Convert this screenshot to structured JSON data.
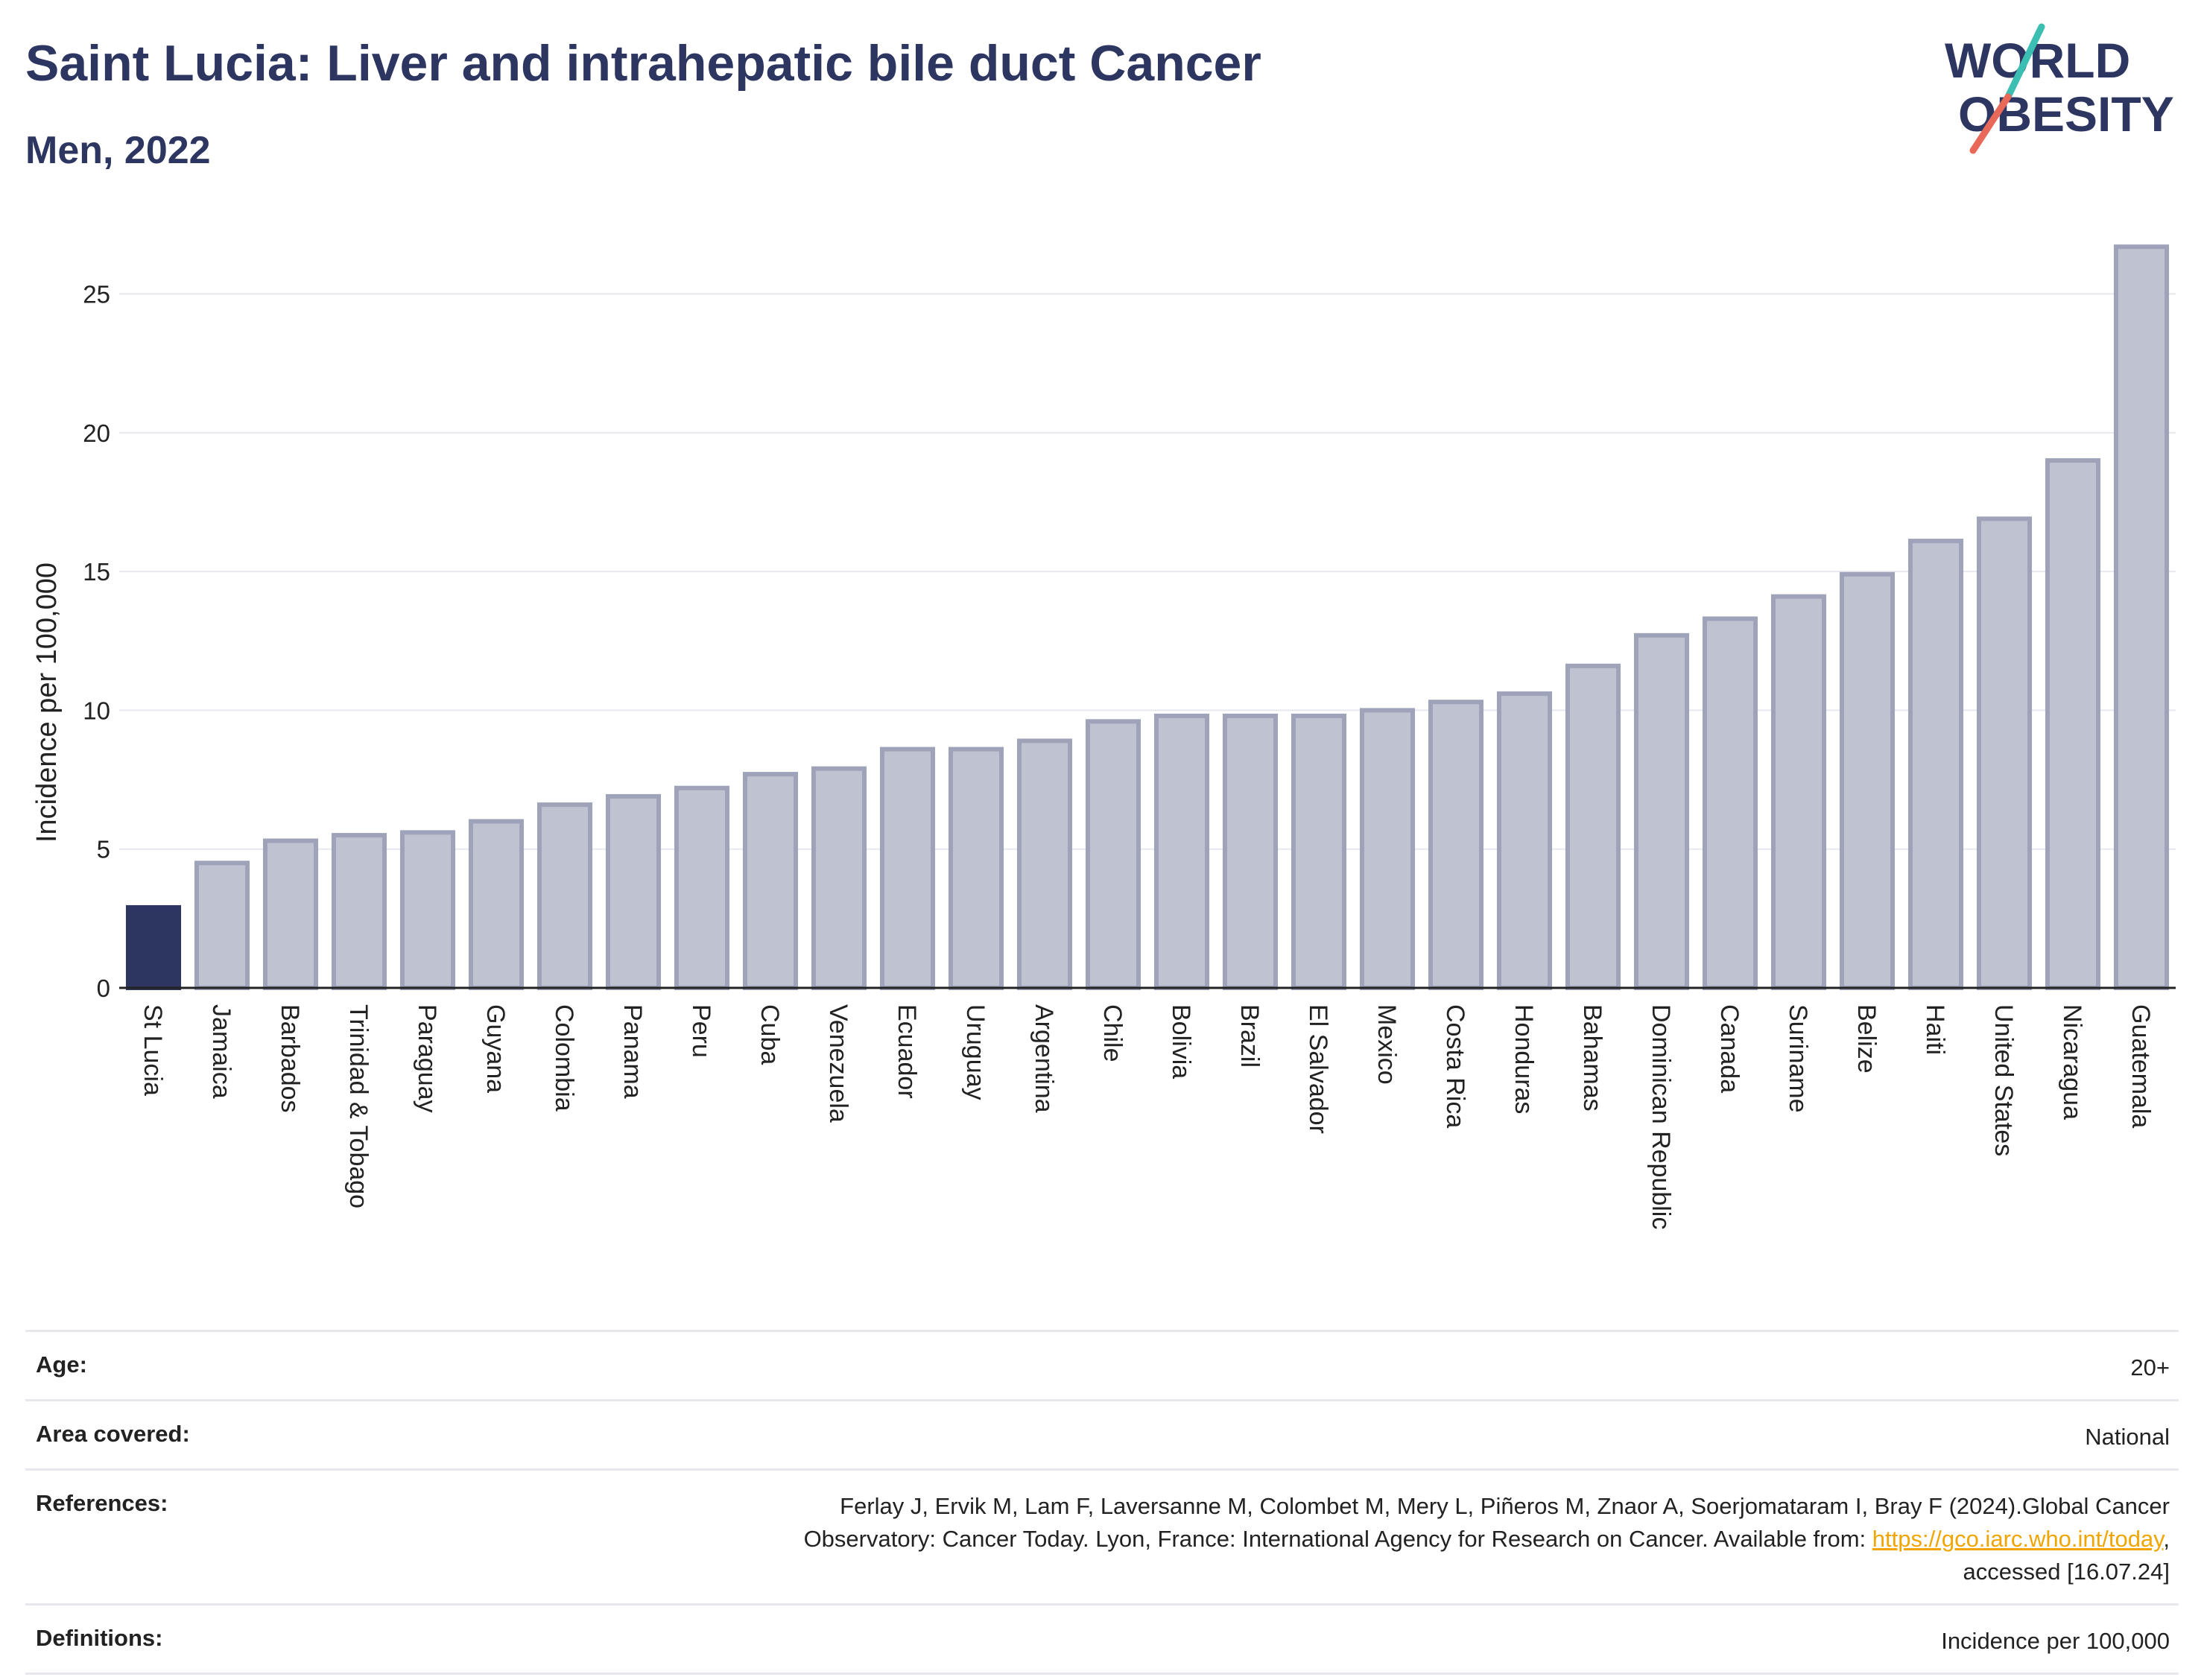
{
  "title": "Saint Lucia: Liver and intrahepatic bile duct Cancer",
  "subtitle": "Men, 2022",
  "logo": {
    "line1": "WORLD",
    "line2": "OBESITY",
    "colors": {
      "text": "#2d3561",
      "slash_teal": "#3bbfb2",
      "slash_coral": "#e8685a"
    }
  },
  "chart_data": {
    "type": "bar",
    "ylabel": "Incidence per 100,000",
    "xlabel": "",
    "ylim": [
      0,
      27
    ],
    "yticks": [
      0,
      5,
      10,
      15,
      20,
      25
    ],
    "grid": true,
    "highlight_category": "St Lucia",
    "colors": {
      "highlight": "#2d3561",
      "bar_fill": "#bfc2d0",
      "bar_stroke": "#9ea3ba"
    },
    "categories": [
      "St Lucia",
      "Jamaica",
      "Barbados",
      "Trinidad & Tobago",
      "Paraguay",
      "Guyana",
      "Colombia",
      "Panama",
      "Peru",
      "Cuba",
      "Venezuela",
      "Ecuador",
      "Uruguay",
      "Argentina",
      "Chile",
      "Bolivia",
      "Brazil",
      "El Salvador",
      "Mexico",
      "Costa Rica",
      "Honduras",
      "Bahamas",
      "Dominican Republic",
      "Canada",
      "Suriname",
      "Belize",
      "Haiti",
      "United States",
      "Nicaragua",
      "Guatemala"
    ],
    "values": [
      2.9,
      4.5,
      5.3,
      5.5,
      5.6,
      6.0,
      6.6,
      6.9,
      7.2,
      7.7,
      7.9,
      8.6,
      8.6,
      8.9,
      9.6,
      9.8,
      9.8,
      9.8,
      10.0,
      10.3,
      10.6,
      11.6,
      12.7,
      13.3,
      14.1,
      14.9,
      16.1,
      16.9,
      19.0,
      26.7
    ]
  },
  "info": {
    "age_label": "Age:",
    "age_value": "20+",
    "area_label": "Area covered:",
    "area_value": "National",
    "references_label": "References:",
    "references_line1": "Ferlay J, Ervik M, Lam F, Laversanne M, Colombet M, Mery L, Piñeros M, Znaor A, Soerjomataram I, Bray F (2024).Global Cancer",
    "references_line2_prefix": "Observatory: Cancer Today. Lyon, France: International Agency for Research on Cancer. Available from: ",
    "references_link": "https://gco.iarc.who.int/today",
    "references_line2_suffix": ",",
    "references_line3": "accessed [16.07.24]",
    "definitions_label": "Definitions:",
    "definitions_value": "Incidence per 100,000"
  }
}
